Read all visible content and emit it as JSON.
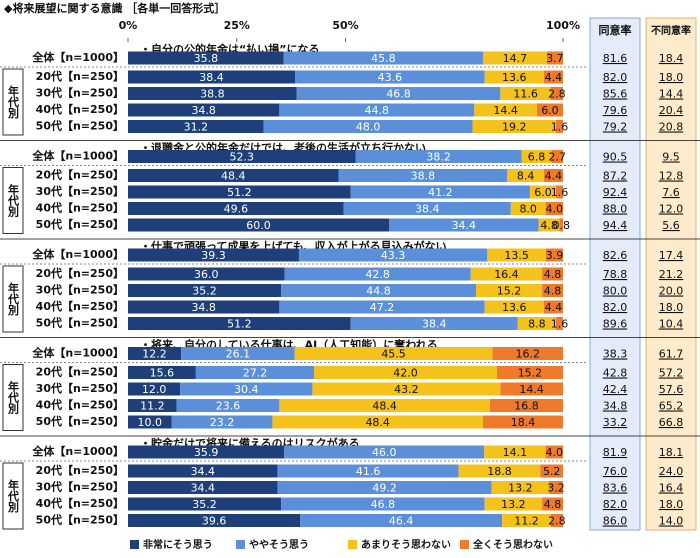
{
  "title": "◆将来展望に関する意識 ［各単一回答形式］",
  "chart_data": {
    "type": "bar",
    "stacked": true,
    "xlim": [
      0,
      100
    ],
    "xticks": [
      {
        "value": 0,
        "label": "0%"
      },
      {
        "value": 25,
        "label": "25%"
      },
      {
        "value": 50,
        "label": "50%"
      },
      {
        "value": 100,
        "label": "100%"
      }
    ],
    "series": [
      {
        "name": "非常にそう思う",
        "color": "#1f3f7a"
      },
      {
        "name": "ややそう思う",
        "color": "#5b8fd9"
      },
      {
        "name": "あまりそう思わない",
        "color": "#f5c21b"
      },
      {
        "name": "全くそう思わない",
        "color": "#ef7a2c"
      }
    ],
    "group_label": "年代別",
    "agree_header": "同意率",
    "disagree_header": "不同意率",
    "categories": [
      "全体【n=1000】",
      "20代【n=250】",
      "30代【n=250】",
      "40代【n=250】",
      "50代【n=250】"
    ],
    "groups": [
      {
        "title": "・自分の公的年金は“払い損”になる",
        "values": [
          [
            35.8,
            45.8,
            14.7,
            3.7
          ],
          [
            38.4,
            43.6,
            13.6,
            4.4
          ],
          [
            38.8,
            46.8,
            11.6,
            2.8
          ],
          [
            34.8,
            44.8,
            14.4,
            6.0
          ],
          [
            31.2,
            48.0,
            19.2,
            1.6
          ]
        ],
        "value_labels": [
          [
            "35.8",
            "45.8",
            "14.7",
            "3.7"
          ],
          [
            "38.4",
            "43.6",
            "13.6",
            "4.4"
          ],
          [
            "38.8",
            "46.8",
            "11.6",
            "2.8"
          ],
          [
            "34.8",
            "44.8",
            "14.4",
            "6.0"
          ],
          [
            "31.2",
            "48.0",
            "19.2",
            "1.6"
          ]
        ],
        "agree": [
          81.6,
          82.0,
          85.6,
          79.6,
          79.2
        ],
        "agree_labels": [
          "81.6",
          "82.0",
          "85.6",
          "79.6",
          "79.2"
        ],
        "disagree": [
          18.4,
          18.0,
          14.4,
          20.4,
          20.8
        ],
        "disagree_labels": [
          "18.4",
          "18.0",
          "14.4",
          "20.4",
          "20.8"
        ]
      },
      {
        "title": "・退職金と公的年金だけでは、老後の生活が立ち行かない",
        "values": [
          [
            52.3,
            38.2,
            6.8,
            2.7
          ],
          [
            48.4,
            38.8,
            8.4,
            4.4
          ],
          [
            51.2,
            41.2,
            6.0,
            1.6
          ],
          [
            49.6,
            38.4,
            8.0,
            4.0
          ],
          [
            60.0,
            34.4,
            4.8,
            0.8
          ]
        ],
        "value_labels": [
          [
            "52.3",
            "38.2",
            "6.8",
            "2.7"
          ],
          [
            "48.4",
            "38.8",
            "8.4",
            "4.4"
          ],
          [
            "51.2",
            "41.2",
            "6.0",
            "1.6"
          ],
          [
            "49.6",
            "38.4",
            "8.0",
            "4.0"
          ],
          [
            "60.0",
            "34.4",
            "4.8",
            "0.8"
          ]
        ],
        "agree": [
          90.5,
          87.2,
          92.4,
          88.0,
          94.4
        ],
        "agree_labels": [
          "90.5",
          "87.2",
          "92.4",
          "88.0",
          "94.4"
        ],
        "disagree": [
          9.5,
          12.8,
          7.6,
          12.0,
          5.6
        ],
        "disagree_labels": [
          "9.5",
          "12.8",
          "7.6",
          "12.0",
          "5.6"
        ]
      },
      {
        "title": "・仕事で頑張って成果を上げても、収入が上がる見込みがない",
        "values": [
          [
            39.3,
            43.3,
            13.5,
            3.9
          ],
          [
            36.0,
            42.8,
            16.4,
            4.8
          ],
          [
            35.2,
            44.8,
            15.2,
            4.8
          ],
          [
            34.8,
            47.2,
            13.6,
            4.4
          ],
          [
            51.2,
            38.4,
            8.8,
            1.6
          ]
        ],
        "value_labels": [
          [
            "39.3",
            "43.3",
            "13.5",
            "3.9"
          ],
          [
            "36.0",
            "42.8",
            "16.4",
            "4.8"
          ],
          [
            "35.2",
            "44.8",
            "15.2",
            "4.8"
          ],
          [
            "34.8",
            "47.2",
            "13.6",
            "4.4"
          ],
          [
            "51.2",
            "38.4",
            "8.8",
            "1.6"
          ]
        ],
        "agree": [
          82.6,
          78.8,
          80.0,
          82.0,
          89.6
        ],
        "agree_labels": [
          "82.6",
          "78.8",
          "80.0",
          "82.0",
          "89.6"
        ],
        "disagree": [
          17.4,
          21.2,
          20.0,
          18.0,
          10.4
        ],
        "disagree_labels": [
          "17.4",
          "21.2",
          "20.0",
          "18.0",
          "10.4"
        ]
      },
      {
        "title": "・将来、自分のしている仕事は、AI（人工知能）に奪われる",
        "values": [
          [
            12.2,
            26.1,
            45.5,
            16.2
          ],
          [
            15.6,
            27.2,
            42.0,
            15.2
          ],
          [
            12.0,
            30.4,
            43.2,
            14.4
          ],
          [
            11.2,
            23.6,
            48.4,
            16.8
          ],
          [
            10.0,
            23.2,
            48.4,
            18.4
          ]
        ],
        "value_labels": [
          [
            "12.2",
            "26.1",
            "45.5",
            "16.2"
          ],
          [
            "15.6",
            "27.2",
            "42.0",
            "15.2"
          ],
          [
            "12.0",
            "30.4",
            "43.2",
            "14.4"
          ],
          [
            "11.2",
            "23.6",
            "48.4",
            "16.8"
          ],
          [
            "10.0",
            "23.2",
            "48.4",
            "18.4"
          ]
        ],
        "agree": [
          38.3,
          42.8,
          42.4,
          34.8,
          33.2
        ],
        "agree_labels": [
          "38.3",
          "42.8",
          "42.4",
          "34.8",
          "33.2"
        ],
        "disagree": [
          61.7,
          57.2,
          57.6,
          65.2,
          66.8
        ],
        "disagree_labels": [
          "61.7",
          "57.2",
          "57.6",
          "65.2",
          "66.8"
        ]
      },
      {
        "title": "・貯金だけで将来に備えるのはリスクがある",
        "values": [
          [
            35.9,
            46.0,
            14.1,
            4.0
          ],
          [
            34.4,
            41.6,
            18.8,
            5.2
          ],
          [
            34.4,
            49.2,
            13.2,
            3.2
          ],
          [
            35.2,
            46.8,
            13.2,
            4.8
          ],
          [
            39.6,
            46.4,
            11.2,
            2.8
          ]
        ],
        "value_labels": [
          [
            "35.9",
            "46.0",
            "14.1",
            "4.0"
          ],
          [
            "34.4",
            "41.6",
            "18.8",
            "5.2"
          ],
          [
            "34.4",
            "49.2",
            "13.2",
            "3.2"
          ],
          [
            "35.2",
            "46.8",
            "13.2",
            "4.8"
          ],
          [
            "39.6",
            "46.4",
            "11.2",
            "2.8"
          ]
        ],
        "agree": [
          81.9,
          76.0,
          83.6,
          82.0,
          86.0
        ],
        "agree_labels": [
          "81.9",
          "76.0",
          "83.6",
          "82.0",
          "86.0"
        ],
        "disagree": [
          18.1,
          24.0,
          16.4,
          18.0,
          14.0
        ],
        "disagree_labels": [
          "18.1",
          "24.0",
          "16.4",
          "18.0",
          "14.0"
        ]
      }
    ]
  }
}
